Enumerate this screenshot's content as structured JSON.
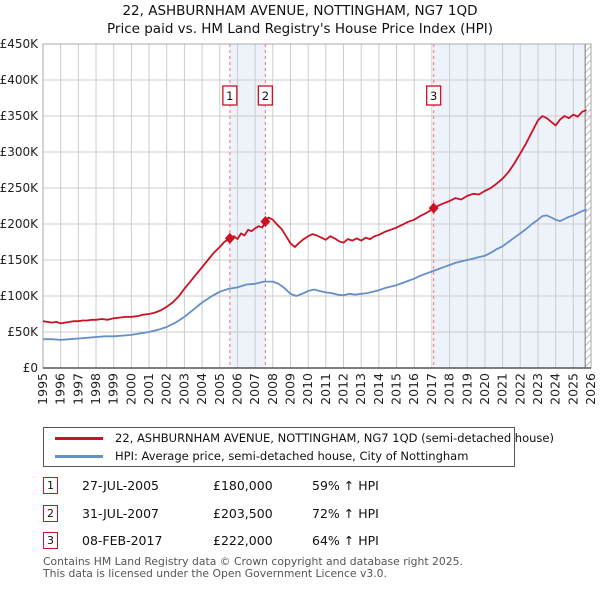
{
  "title": "22, ASHBURNHAM AVENUE, NOTTINGHAM, NG7 1QD",
  "subtitle": "Price paid vs. HM Land Registry's House Price Index (HPI)",
  "colors": {
    "property": "#cc1122",
    "hpi": "#6490c8",
    "band": "#eef2fa",
    "grid": "#cccccc",
    "dashed": "#ee8899",
    "hatch": "#bbbbbb",
    "border": "#aaaaaa",
    "axis": "#555555",
    "text": "#222222"
  },
  "chart_data": {
    "type": "line",
    "title": "22, ASHBURNHAM AVENUE, NOTTINGHAM, NG7 1QD — Price paid vs. HPI",
    "x_axis": {
      "min": 1995,
      "max": 2026,
      "tick_labels": [
        "1995",
        "1996",
        "1997",
        "1998",
        "1999",
        "2000",
        "2001",
        "2002",
        "2003",
        "2004",
        "2005",
        "2006",
        "2007",
        "2008",
        "2009",
        "2010",
        "2011",
        "2012",
        "2013",
        "2014",
        "2015",
        "2016",
        "2017",
        "2018",
        "2019",
        "2020",
        "2021",
        "2022",
        "2023",
        "2024",
        "2025",
        "2026"
      ]
    },
    "y_axis": {
      "min": 0,
      "max_k": 450,
      "tick_labels": [
        "£0",
        "£50K",
        "£100K",
        "£150K",
        "£200K",
        "£250K",
        "£300K",
        "£350K",
        "£400K",
        "£450K"
      ]
    },
    "values_unit": "GBP thousands",
    "series": [
      {
        "name": "22, ASHBURNHAM AVENUE, NOTTINGHAM, NG7 1QD (semi-detached house)",
        "color_key": "property",
        "points": [
          [
            1995.0,
            65
          ],
          [
            1995.25,
            64
          ],
          [
            1995.5,
            63
          ],
          [
            1995.75,
            64
          ],
          [
            1996.0,
            62
          ],
          [
            1996.25,
            63
          ],
          [
            1996.5,
            64
          ],
          [
            1996.75,
            65
          ],
          [
            1997.0,
            65
          ],
          [
            1997.25,
            66
          ],
          [
            1997.5,
            66
          ],
          [
            1997.75,
            67
          ],
          [
            1998.0,
            67
          ],
          [
            1998.33,
            68
          ],
          [
            1998.66,
            67
          ],
          [
            1999.0,
            69
          ],
          [
            1999.33,
            70
          ],
          [
            1999.66,
            71
          ],
          [
            2000.0,
            71
          ],
          [
            2000.33,
            72
          ],
          [
            2000.66,
            74
          ],
          [
            2001.0,
            75
          ],
          [
            2001.33,
            77
          ],
          [
            2001.66,
            80
          ],
          [
            2002.0,
            85
          ],
          [
            2002.33,
            91
          ],
          [
            2002.66,
            99
          ],
          [
            2003.0,
            110
          ],
          [
            2003.33,
            120
          ],
          [
            2003.66,
            130
          ],
          [
            2004.0,
            140
          ],
          [
            2004.33,
            150
          ],
          [
            2004.66,
            160
          ],
          [
            2005.0,
            168
          ],
          [
            2005.25,
            175
          ],
          [
            2005.57,
            180
          ],
          [
            2005.8,
            183
          ],
          [
            2006.0,
            179
          ],
          [
            2006.2,
            187
          ],
          [
            2006.4,
            184
          ],
          [
            2006.6,
            192
          ],
          [
            2006.8,
            190
          ],
          [
            2007.0,
            194
          ],
          [
            2007.2,
            197
          ],
          [
            2007.4,
            195
          ],
          [
            2007.58,
            203
          ],
          [
            2007.75,
            209
          ],
          [
            2008.0,
            206
          ],
          [
            2008.25,
            199
          ],
          [
            2008.5,
            193
          ],
          [
            2008.75,
            183
          ],
          [
            2009.0,
            173
          ],
          [
            2009.25,
            168
          ],
          [
            2009.5,
            174
          ],
          [
            2009.75,
            179
          ],
          [
            2010.0,
            183
          ],
          [
            2010.25,
            186
          ],
          [
            2010.5,
            184
          ],
          [
            2010.75,
            181
          ],
          [
            2011.0,
            178
          ],
          [
            2011.25,
            183
          ],
          [
            2011.5,
            180
          ],
          [
            2011.75,
            176
          ],
          [
            2012.0,
            174
          ],
          [
            2012.25,
            179
          ],
          [
            2012.5,
            177
          ],
          [
            2012.75,
            180
          ],
          [
            2013.0,
            177
          ],
          [
            2013.25,
            181
          ],
          [
            2013.5,
            179
          ],
          [
            2013.75,
            183
          ],
          [
            2014.0,
            185
          ],
          [
            2014.33,
            189
          ],
          [
            2014.66,
            192
          ],
          [
            2015.0,
            195
          ],
          [
            2015.33,
            199
          ],
          [
            2015.66,
            203
          ],
          [
            2016.0,
            206
          ],
          [
            2016.33,
            211
          ],
          [
            2016.66,
            215
          ],
          [
            2017.1,
            222
          ],
          [
            2017.4,
            226
          ],
          [
            2017.7,
            229
          ],
          [
            2018.0,
            232
          ],
          [
            2018.33,
            236
          ],
          [
            2018.66,
            234
          ],
          [
            2019.0,
            239
          ],
          [
            2019.33,
            242
          ],
          [
            2019.66,
            241
          ],
          [
            2020.0,
            246
          ],
          [
            2020.33,
            250
          ],
          [
            2020.66,
            256
          ],
          [
            2021.0,
            263
          ],
          [
            2021.33,
            272
          ],
          [
            2021.66,
            284
          ],
          [
            2022.0,
            298
          ],
          [
            2022.33,
            312
          ],
          [
            2022.66,
            328
          ],
          [
            2023.0,
            344
          ],
          [
            2023.25,
            350
          ],
          [
            2023.5,
            347
          ],
          [
            2023.75,
            342
          ],
          [
            2024.0,
            337
          ],
          [
            2024.25,
            345
          ],
          [
            2024.5,
            350
          ],
          [
            2024.75,
            347
          ],
          [
            2025.0,
            352
          ],
          [
            2025.25,
            349
          ],
          [
            2025.5,
            356
          ],
          [
            2025.75,
            358
          ]
        ]
      },
      {
        "name": "HPI: Average price, semi-detached house, City of Nottingham",
        "color_key": "hpi",
        "points": [
          [
            1995.0,
            40
          ],
          [
            1995.5,
            40
          ],
          [
            1996.0,
            39
          ],
          [
            1996.5,
            40
          ],
          [
            1997.0,
            41
          ],
          [
            1997.5,
            42
          ],
          [
            1998.0,
            43
          ],
          [
            1998.5,
            44
          ],
          [
            1999.0,
            44
          ],
          [
            1999.5,
            45
          ],
          [
            2000.0,
            46
          ],
          [
            2000.5,
            48
          ],
          [
            2001.0,
            50
          ],
          [
            2001.5,
            53
          ],
          [
            2002.0,
            57
          ],
          [
            2002.5,
            63
          ],
          [
            2003.0,
            71
          ],
          [
            2003.5,
            81
          ],
          [
            2004.0,
            91
          ],
          [
            2004.5,
            99
          ],
          [
            2005.0,
            106
          ],
          [
            2005.5,
            110
          ],
          [
            2006.0,
            112
          ],
          [
            2006.5,
            116
          ],
          [
            2007.0,
            117
          ],
          [
            2007.5,
            120
          ],
          [
            2008.0,
            120
          ],
          [
            2008.33,
            117
          ],
          [
            2008.66,
            111
          ],
          [
            2009.0,
            103
          ],
          [
            2009.33,
            100
          ],
          [
            2009.66,
            103
          ],
          [
            2010.0,
            107
          ],
          [
            2010.33,
            109
          ],
          [
            2010.66,
            107
          ],
          [
            2011.0,
            105
          ],
          [
            2011.33,
            104
          ],
          [
            2011.66,
            102
          ],
          [
            2012.0,
            101
          ],
          [
            2012.33,
            103
          ],
          [
            2012.66,
            102
          ],
          [
            2013.0,
            103
          ],
          [
            2013.33,
            104
          ],
          [
            2013.66,
            106
          ],
          [
            2014.0,
            108
          ],
          [
            2014.33,
            111
          ],
          [
            2014.66,
            113
          ],
          [
            2015.0,
            115
          ],
          [
            2015.33,
            118
          ],
          [
            2015.66,
            121
          ],
          [
            2016.0,
            124
          ],
          [
            2016.33,
            128
          ],
          [
            2016.66,
            131
          ],
          [
            2017.0,
            134
          ],
          [
            2017.33,
            137
          ],
          [
            2017.66,
            140
          ],
          [
            2018.0,
            143
          ],
          [
            2018.33,
            146
          ],
          [
            2018.66,
            148
          ],
          [
            2019.0,
            150
          ],
          [
            2019.33,
            152
          ],
          [
            2019.66,
            154
          ],
          [
            2020.0,
            156
          ],
          [
            2020.33,
            160
          ],
          [
            2020.66,
            165
          ],
          [
            2021.0,
            169
          ],
          [
            2021.33,
            175
          ],
          [
            2021.66,
            181
          ],
          [
            2022.0,
            187
          ],
          [
            2022.33,
            193
          ],
          [
            2022.66,
            200
          ],
          [
            2023.0,
            206
          ],
          [
            2023.25,
            211
          ],
          [
            2023.5,
            212
          ],
          [
            2023.75,
            209
          ],
          [
            2024.0,
            206
          ],
          [
            2024.25,
            204
          ],
          [
            2024.5,
            207
          ],
          [
            2024.75,
            210
          ],
          [
            2025.0,
            212
          ],
          [
            2025.25,
            215
          ],
          [
            2025.5,
            218
          ],
          [
            2025.75,
            220
          ]
        ]
      }
    ],
    "sales": [
      {
        "label": "1",
        "x": 2005.57,
        "value_k": 180
      },
      {
        "label": "2",
        "x": 2007.58,
        "value_k": 203.5
      },
      {
        "label": "3",
        "x": 2017.1,
        "value_k": 222
      }
    ],
    "shaded_bands": [
      [
        2005.57,
        2007.58
      ],
      [
        2017.1,
        2025.67
      ]
    ],
    "hatch_from": 2025.67,
    "grid": true,
    "legend_position": "bottom"
  },
  "legend": {
    "entries": [
      {
        "label": "22, ASHBURNHAM AVENUE, NOTTINGHAM, NG7 1QD (semi-detached house)",
        "color_key": "property"
      },
      {
        "label": "HPI: Average price, semi-detached house, City of Nottingham",
        "color_key": "hpi"
      }
    ]
  },
  "transactions": [
    {
      "num": "1",
      "date": "27-JUL-2005",
      "price": "£180,000",
      "hpi": "59% ↑ HPI"
    },
    {
      "num": "2",
      "date": "31-JUL-2007",
      "price": "£203,500",
      "hpi": "72% ↑ HPI"
    },
    {
      "num": "3",
      "date": "08-FEB-2017",
      "price": "£222,000",
      "hpi": "64% ↑ HPI"
    }
  ],
  "footer": {
    "line1": "Contains HM Land Registry data © Crown copyright and database right 2025.",
    "line2": "This data is licensed under the Open Government Licence v3.0."
  }
}
